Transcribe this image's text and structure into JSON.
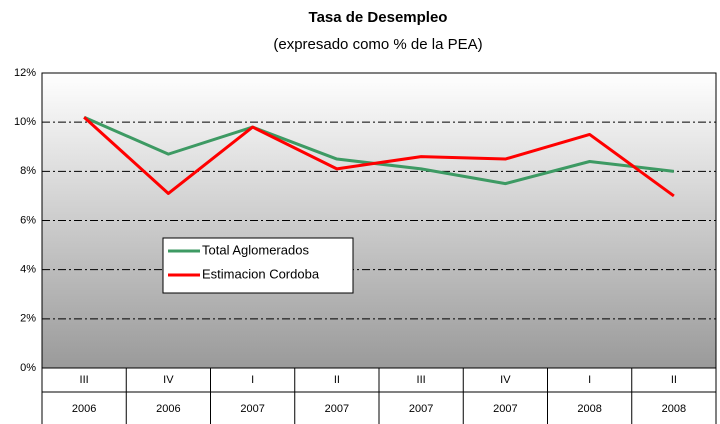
{
  "chart_data": {
    "type": "line",
    "title": "Tasa de Desempleo",
    "subtitle": "(expresado como % de la PEA)",
    "categories": [
      "III",
      "IV",
      "I",
      "II",
      "III",
      "IV",
      "I",
      "II"
    ],
    "years": [
      "2006",
      "2006",
      "2007",
      "2007",
      "2007",
      "2007",
      "2008",
      "2008"
    ],
    "series": [
      {
        "name": "Total Aglomerados",
        "color": "#3d9a63",
        "values": [
          10.2,
          8.7,
          9.8,
          8.5,
          8.1,
          7.5,
          8.4,
          8.0
        ]
      },
      {
        "name": "Estimacion Cordoba",
        "color": "#ff0000",
        "values": [
          10.2,
          7.1,
          9.8,
          8.1,
          8.6,
          8.5,
          9.5,
          7.0
        ]
      }
    ],
    "ylim": [
      0,
      12
    ],
    "yticks": [
      {
        "value": 0,
        "label": "0%"
      },
      {
        "value": 2,
        "label": "2%"
      },
      {
        "value": 4,
        "label": "4%"
      },
      {
        "value": 6,
        "label": "6%"
      },
      {
        "value": 8,
        "label": "8%"
      },
      {
        "value": 10,
        "label": "10%"
      },
      {
        "value": 12,
        "label": "12%"
      }
    ],
    "grid": true
  }
}
